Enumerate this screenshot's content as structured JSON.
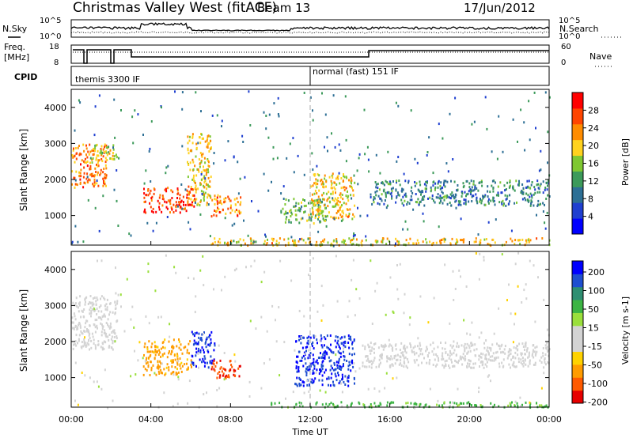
{
  "header": {
    "station": "Christmas Valley West (fitACF)",
    "beam": "Beam 13",
    "date": "17/Jun/2012"
  },
  "side_labels": {
    "nsky": "N.Sky",
    "nsearch": "N.Search",
    "freq_line1": "Freq.",
    "freq_line2": "[MHz]",
    "nave": "Nave",
    "cpid": "CPID"
  },
  "noise_panel": {
    "left_ticks": [
      "10^5",
      "10^0"
    ],
    "right_ticks": [
      "10^5",
      "10^0"
    ]
  },
  "freq_panel": {
    "left_ticks": [
      "18",
      "8"
    ],
    "right_ticks": [
      "60",
      "0"
    ]
  },
  "cpid_panel": {
    "modes": [
      "themis 3300 IF",
      "normal (fast) 151 IF"
    ],
    "switch_hour": 12
  },
  "colors": {
    "power_bar": [
      "#0000ff",
      "#1f3fd0",
      "#2d6f95",
      "#3c9a5a",
      "#7fc832",
      "#ffd21e",
      "#ff8c00",
      "#ff4500",
      "#ff0000"
    ],
    "velocity_bar": [
      "#e60000",
      "#ff5a00",
      "#ff9c00",
      "#ffd200",
      "#d3d3d3",
      "#d3d3d3",
      "#9adf3c",
      "#3cb443",
      "#2f8f72",
      "#1f4fd0",
      "#0000ff"
    ]
  },
  "chart_data": [
    {
      "type": "heatmap",
      "name": "Power",
      "ylabel": "Slant Range [km]",
      "xlabel": "Time UT",
      "xlim": [
        "00:00",
        "00:00"
      ],
      "x_ticks": [
        "00:00",
        "04:00",
        "08:00",
        "12:00",
        "16:00",
        "20:00",
        "00:00"
      ],
      "ylim": [
        180,
        4500
      ],
      "y_ticks": [
        1000,
        2000,
        3000,
        4000
      ],
      "colorbar": {
        "label": "Power [dB]",
        "ticks": [
          4,
          8,
          12,
          16,
          20,
          24,
          28
        ],
        "range": [
          0,
          32
        ]
      },
      "features": [
        {
          "t_start": 0.0,
          "t_end": 1.8,
          "range_low": 1800,
          "range_high": 3000,
          "value": 24
        },
        {
          "t_start": 1.0,
          "t_end": 2.3,
          "range_low": 2500,
          "range_high": 3000,
          "value": 18
        },
        {
          "t_start": 3.6,
          "t_end": 6.2,
          "range_low": 1100,
          "range_high": 1800,
          "value": 28
        },
        {
          "t_start": 5.8,
          "t_end": 7.0,
          "range_low": 1300,
          "range_high": 3300,
          "value": 20
        },
        {
          "t_start": 7.0,
          "t_end": 8.5,
          "range_low": 1000,
          "range_high": 1600,
          "value": 24
        },
        {
          "t_start": 10.5,
          "t_end": 12.8,
          "range_low": 800,
          "range_high": 1500,
          "value": 14
        },
        {
          "t_start": 12.0,
          "t_end": 14.2,
          "range_low": 900,
          "range_high": 2200,
          "value": 20
        },
        {
          "t_start": 15.0,
          "t_end": 24.0,
          "range_low": 1300,
          "range_high": 2000,
          "value": 10
        },
        {
          "t_start": 7.0,
          "t_end": 24.0,
          "range_low": 200,
          "range_high": 400,
          "value": 20
        }
      ]
    },
    {
      "type": "heatmap",
      "name": "Velocity",
      "ylabel": "Slant Range [km]",
      "xlabel": "Time UT",
      "xlim": [
        "00:00",
        "00:00"
      ],
      "x_ticks": [
        "00:00",
        "04:00",
        "08:00",
        "12:00",
        "16:00",
        "20:00",
        "00:00"
      ],
      "ylim": [
        180,
        4500
      ],
      "y_ticks": [
        1000,
        2000,
        3000,
        4000
      ],
      "colorbar": {
        "label": "Velocity [m s-1]",
        "ticks": [
          200,
          100,
          50,
          15,
          -15,
          -50,
          -100,
          -200
        ],
        "range": [
          -250,
          250
        ]
      },
      "features": [
        {
          "t_start": 0.0,
          "t_end": 2.3,
          "range_low": 1800,
          "range_high": 3300,
          "value": 0
        },
        {
          "t_start": 3.6,
          "t_end": 6.0,
          "range_low": 1100,
          "range_high": 2100,
          "value": -60
        },
        {
          "t_start": 6.0,
          "t_end": 7.2,
          "range_low": 1300,
          "range_high": 2300,
          "value": 200
        },
        {
          "t_start": 7.0,
          "t_end": 8.5,
          "range_low": 1000,
          "range_high": 1500,
          "value": -200
        },
        {
          "t_start": 11.2,
          "t_end": 14.2,
          "range_low": 800,
          "range_high": 2200,
          "value": 200
        },
        {
          "t_start": 14.6,
          "t_end": 24.0,
          "range_low": 1300,
          "range_high": 2000,
          "value": 0
        },
        {
          "t_start": 10.0,
          "t_end": 24.0,
          "range_low": 200,
          "range_high": 350,
          "value": 60
        }
      ]
    }
  ],
  "axis_title": "Time UT"
}
